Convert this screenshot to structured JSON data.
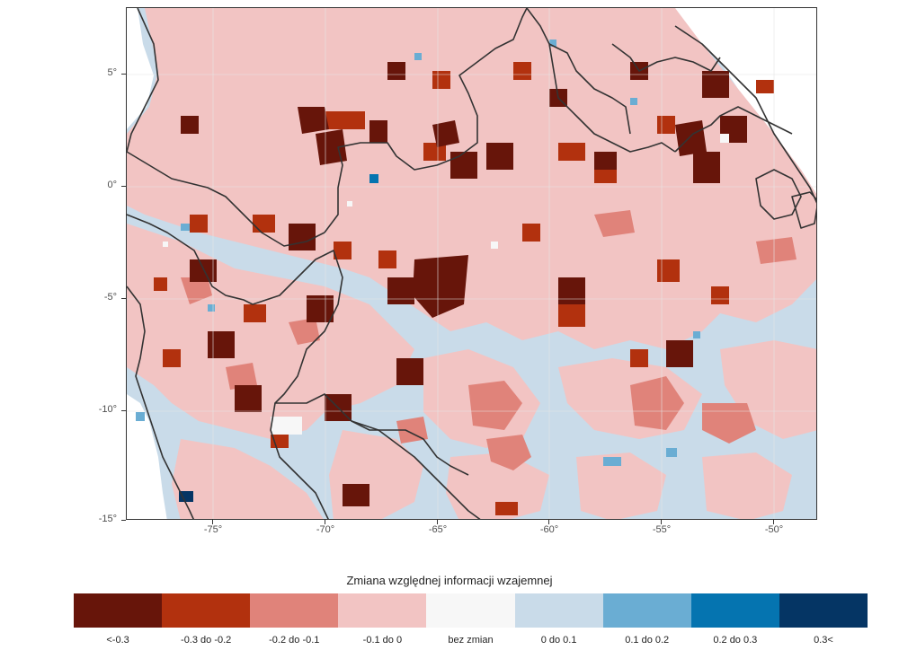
{
  "map": {
    "y_axis_ticks": [
      "5°",
      "0°",
      "-5°",
      "-10°",
      "-15°"
    ],
    "x_axis_ticks": [
      "-75°",
      "-70°",
      "-65°",
      "-60°",
      "-55°",
      "-50°"
    ],
    "background_class": "0 do 0.1",
    "border_color": "#333333"
  },
  "legend": {
    "title": "Zmiana względnej informacji wzajemnej",
    "items": [
      {
        "label": "<-0.3",
        "color": "#67150a"
      },
      {
        "label": "-0.3 do -0.2",
        "color": "#b2310e"
      },
      {
        "label": "-0.2 do -0.1",
        "color": "#e0837a"
      },
      {
        "label": "-0.1 do 0",
        "color": "#f2c4c3"
      },
      {
        "label": "bez zmian",
        "color": "#f7f7f7"
      },
      {
        "label": "0 do 0.1",
        "color": "#c9dbe9"
      },
      {
        "label": "0.1 do 0.2",
        "color": "#6aadd3"
      },
      {
        "label": "0.2 do 0.3",
        "color": "#0574b0"
      },
      {
        "label": "0.3<",
        "color": "#053564"
      }
    ]
  }
}
